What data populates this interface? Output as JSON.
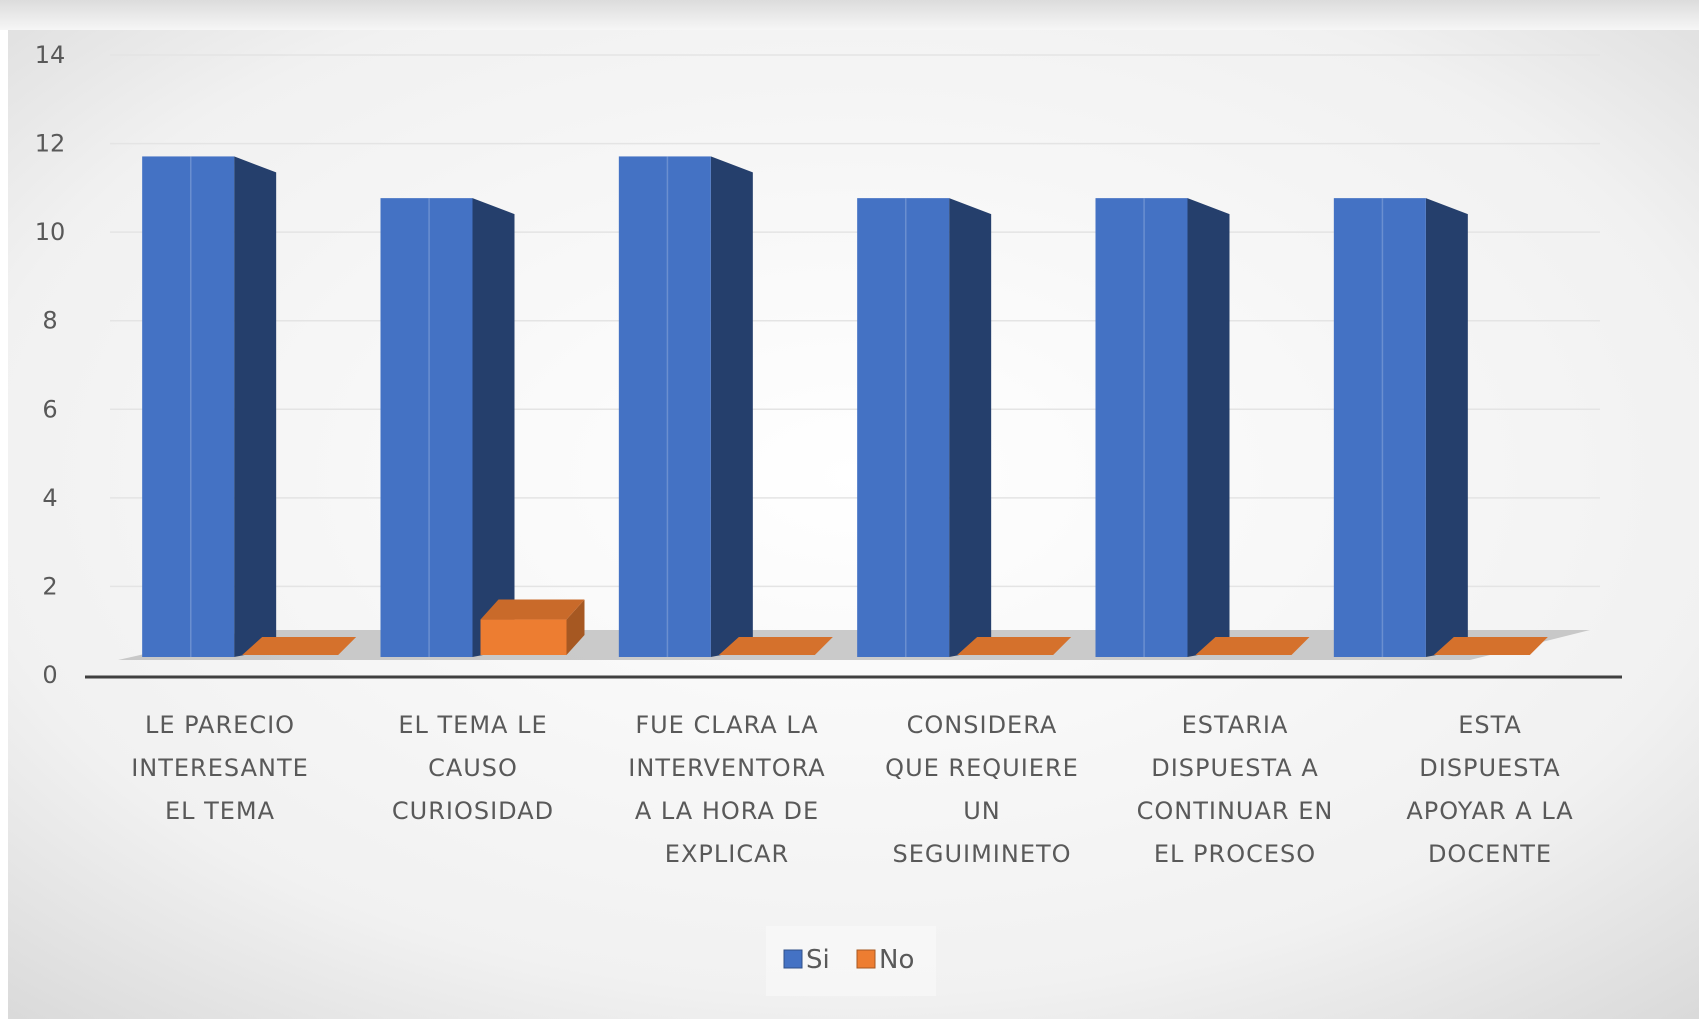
{
  "chart_data": {
    "type": "bar",
    "categories": [
      "LE PARECIO INTERESANTE EL TEMA",
      "EL TEMA LE CAUSO CURIOSIDAD",
      "FUE CLARA LA INTERVENTORA A LA HORA DE EXPLICAR",
      "CONSIDERA QUE REQUIERE UN SEGUIMINETO",
      "ESTARIA DISPUESTA A CONTINUAR EN EL PROCESO",
      "ESTA DISPUESTA APOYAR A LA DOCENTE"
    ],
    "category_lines": [
      [
        "LE PARECIO",
        "INTERESANTE",
        "EL TEMA"
      ],
      [
        "EL TEMA LE",
        "CAUSO",
        "CURIOSIDAD"
      ],
      [
        "FUE CLARA LA",
        "INTERVENTORA",
        "A LA HORA DE",
        "EXPLICAR"
      ],
      [
        "CONSIDERA",
        "QUE REQUIERE",
        "UN",
        "SEGUIMINETO"
      ],
      [
        "ESTARIA",
        "DISPUESTA A",
        "CONTINUAR EN",
        "EL PROCESO"
      ],
      [
        "ESTA",
        "DISPUESTA",
        "APOYAR A LA",
        "DOCENTE"
      ]
    ],
    "series": [
      {
        "name": "Si",
        "values": [
          12,
          11,
          12,
          11,
          11,
          11
        ],
        "color": "#4472C4"
      },
      {
        "name": "No",
        "values": [
          0,
          1,
          0,
          0,
          0,
          0
        ],
        "color": "#ED7D31"
      }
    ],
    "yticks": [
      "0",
      "2",
      "4",
      "6",
      "8",
      "10",
      "12",
      "14"
    ],
    "ylim": [
      0,
      14
    ],
    "grid": true,
    "style": "3d-clustered-column",
    "legend_position": "bottom"
  }
}
